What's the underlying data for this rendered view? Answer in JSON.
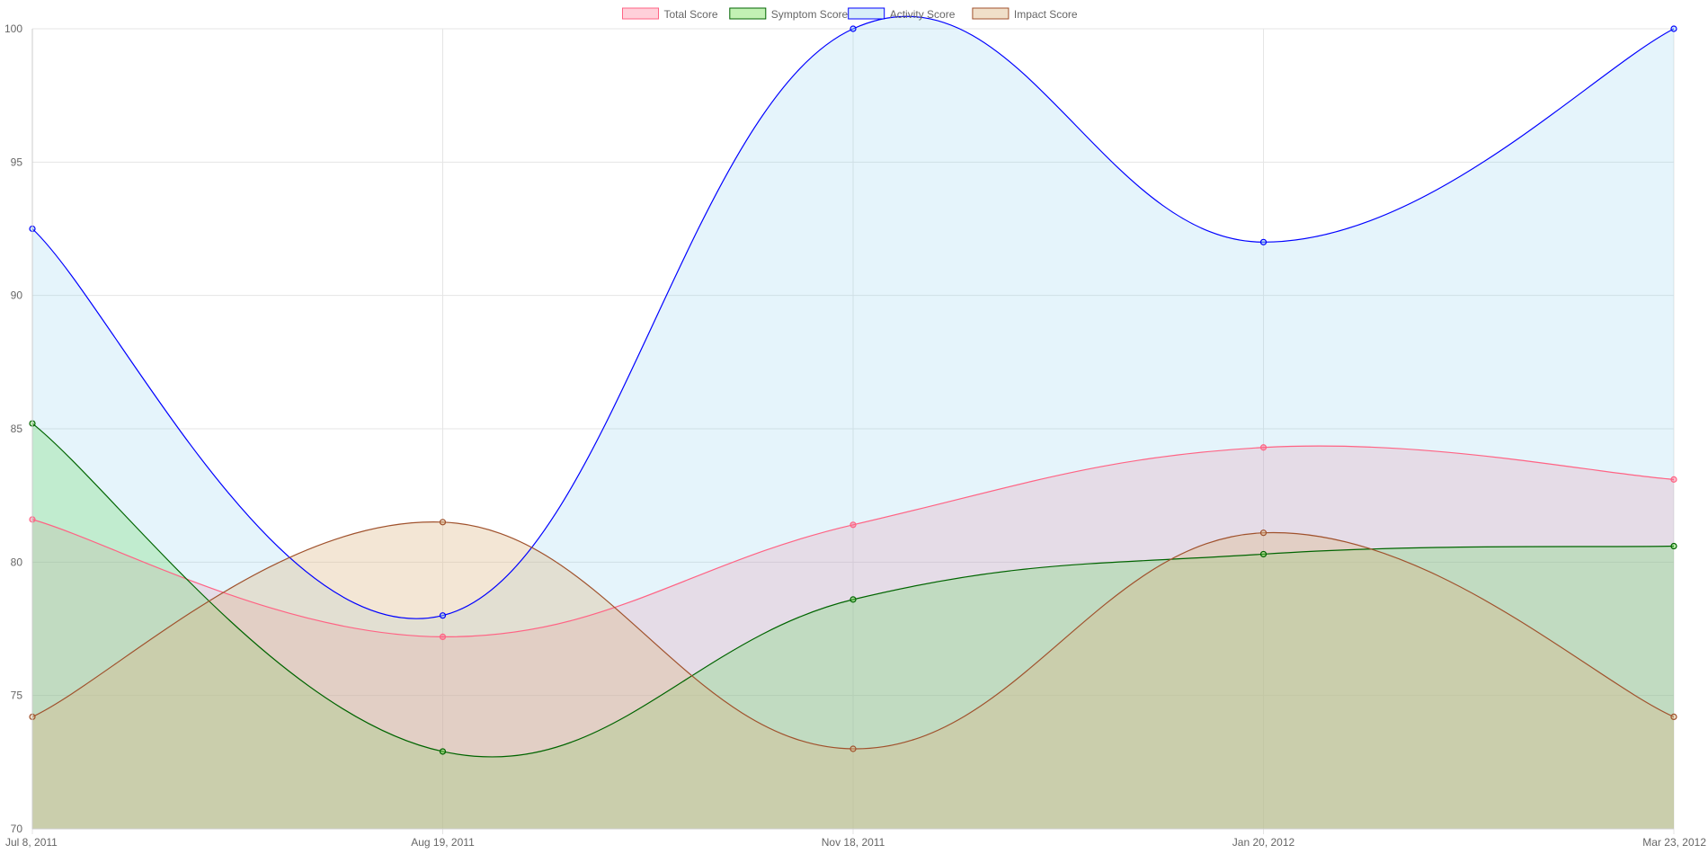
{
  "chart_data": {
    "type": "area",
    "title": "",
    "xlabel": "",
    "ylabel": "",
    "x": [
      "Jul 8, 2011",
      "Aug 19, 2011",
      "Nov 18, 2011",
      "Jan 20, 2012",
      "Mar 23, 2012"
    ],
    "ylim": [
      70,
      100
    ],
    "yticks": [
      70,
      75,
      80,
      85,
      90,
      95,
      100
    ],
    "grid": true,
    "legend_position": "top",
    "series": [
      {
        "name": "Total Score",
        "values": [
          81.6,
          77.2,
          81.4,
          84.3,
          83.1
        ],
        "line_color": "#ff6384",
        "fill_color": "#ff6384",
        "fill_opacity": 0.2
      },
      {
        "name": "Symptom Score",
        "values": [
          85.2,
          72.9,
          78.6,
          80.3,
          80.6
        ],
        "line_color": "#006400",
        "fill_color": "#66dd44",
        "fill_opacity": 0.3
      },
      {
        "name": "Activity Score",
        "values": [
          92.5,
          78.0,
          100.0,
          92.0,
          100.0
        ],
        "line_color": "#0000ff",
        "fill_color": "#87ceeb",
        "fill_opacity": 0.22
      },
      {
        "name": "Impact Score",
        "values": [
          74.2,
          81.5,
          73.0,
          81.1,
          74.2
        ],
        "line_color": "#a0522d",
        "fill_color": "#deb887",
        "fill_opacity": 0.35
      }
    ]
  }
}
